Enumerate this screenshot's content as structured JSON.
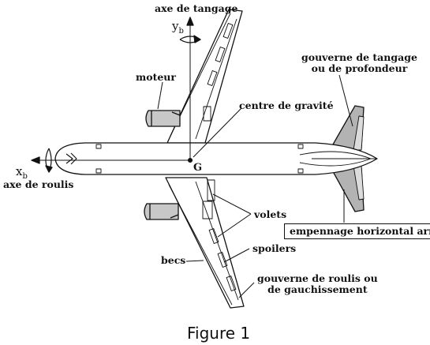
{
  "labels": {
    "pitch_axis": "axe de tangage",
    "yb": "y",
    "yb_sub": "b",
    "engine": "moteur",
    "cg": "centre de gravité",
    "g": "G",
    "xb": "x",
    "xb_sub": "b",
    "roll_axis": "axe de roulis",
    "elevator_line1": "gouverne de tangage",
    "elevator_line2": "ou de profondeur",
    "flaps": "volets",
    "stabilizer": "empennage horizontal arrière",
    "spoilers": "spoilers",
    "slats": "becs",
    "aileron_line1": "gouverne de roulis ou",
    "aileron_line2": "de gauchissement"
  },
  "caption": "Figure 1",
  "colors": {
    "ink": "#111111",
    "tail_fill": "#b3b3b3",
    "engine_fill": "#c8c8c8"
  }
}
